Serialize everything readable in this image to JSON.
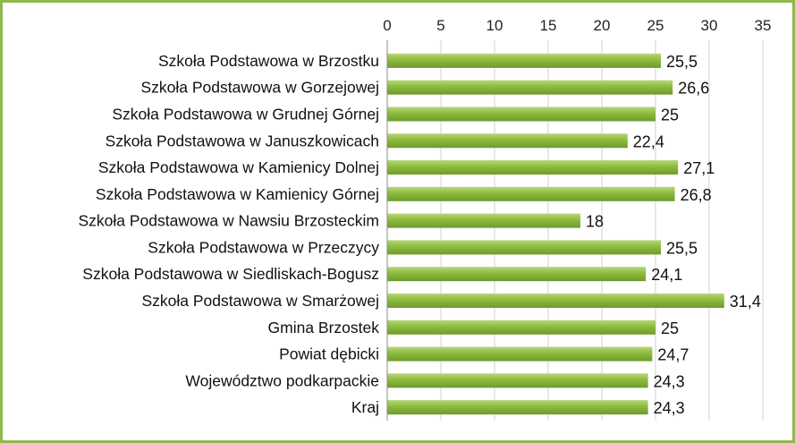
{
  "chart_data": {
    "type": "bar",
    "orientation": "horizontal",
    "title": "",
    "xlabel": "",
    "ylabel": "",
    "xlim": [
      0,
      35
    ],
    "ticks": [
      0,
      5,
      10,
      15,
      20,
      25,
      30,
      35
    ],
    "x_axis_position": "top",
    "grid": true,
    "legend": "none",
    "bar_color": "#8dbb3d",
    "bar_color_light": "#b7d77a",
    "bar_color_dark": "#6f9a2c",
    "border_color": "#8fb94f",
    "categories": [
      "Szkoła Podstawowa w Brzostku",
      "Szkoła Podstawowa w Gorzejowej",
      "Szkoła Podstawowa w Grudnej Górnej",
      "Szkoła Podstawowa w Januszkowicach",
      "Szkoła Podstawowa w Kamienicy Dolnej",
      "Szkoła Podstawowa w Kamienicy Górnej",
      "Szkoła Podstawowa w Nawsiu Brzosteckim",
      "Szkoła Podstawowa w Przeczycy",
      "Szkoła Podstawowa w Siedliskach-Bogusz",
      "Szkoła Podstawowa w Smarżowej",
      "Gmina Brzostek",
      "Powiat dębicki",
      "Województwo podkarpackie",
      "Kraj"
    ],
    "values": [
      25.5,
      26.6,
      25,
      22.4,
      27.1,
      26.8,
      18,
      25.5,
      24.1,
      31.4,
      25,
      24.7,
      24.3,
      24.3
    ],
    "value_labels": [
      "25,5",
      "26,6",
      "25",
      "22,4",
      "27,1",
      "26,8",
      "18",
      "25,5",
      "24,1",
      "31,4",
      "25",
      "24,7",
      "24,3",
      "24,3"
    ]
  }
}
